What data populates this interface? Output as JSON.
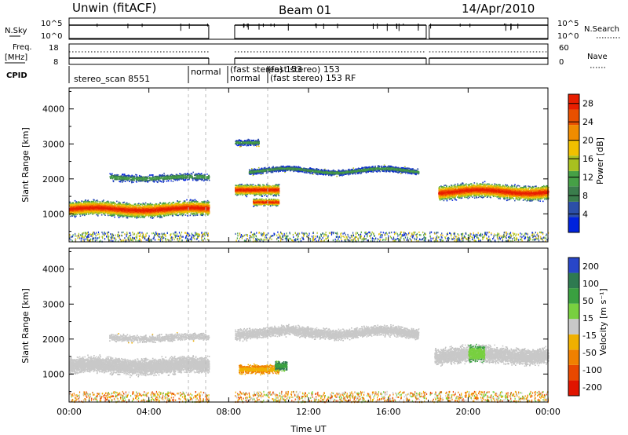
{
  "header": {
    "title_left": "Unwin (fitACF)",
    "title_center": "Beam 01",
    "title_right": "14/Apr/2010"
  },
  "panels": {
    "nsky_label": "N.Sky",
    "nsearch_label": "N.Search",
    "nsky_ticks": [
      "10^5",
      "10^0"
    ],
    "freq_label": "Freq.",
    "freq_unit": "[MHz]",
    "freq_ticks": [
      "18",
      "8"
    ],
    "nave_label": "Nave",
    "nave_ticks": [
      "60",
      "0"
    ],
    "cpid_label": "CPID",
    "cpid_segments": [
      "stereo_scan 8551",
      "normal",
      "(fast stereo) 153",
      "(fast stereo) 153 RF",
      "normal",
      "(fast stereo) 153"
    ]
  },
  "chart_data": [
    {
      "type": "heatmap",
      "title": "",
      "ylabel": "Slant Range [km]",
      "xlabel": "",
      "x_ticks": [
        "00:00",
        "04:00",
        "08:00",
        "12:00",
        "16:00",
        "20:00",
        "00:00"
      ],
      "y_ticks": [
        1000,
        2000,
        3000,
        4000
      ],
      "ylim": [
        200,
        4600
      ],
      "colorbar": {
        "label": "Power [dB]",
        "ticks": [
          4,
          8,
          12,
          16,
          20,
          24,
          28
        ],
        "range": [
          0,
          30
        ]
      },
      "data_gaps_ut": [
        [
          7.0,
          8.3
        ],
        [
          17.9,
          18.05
        ]
      ],
      "colors": [
        "#0022dd",
        "#2c4fa8",
        "#3a7d4c",
        "#46a046",
        "#a8c020",
        "#f0c000",
        "#f08c00",
        "#e85000",
        "#e81e00"
      ]
    },
    {
      "type": "heatmap",
      "title": "",
      "ylabel": "Slant Range [km]",
      "xlabel": "Time UT",
      "x_ticks": [
        "00:00",
        "04:00",
        "08:00",
        "12:00",
        "16:00",
        "20:00",
        "00:00"
      ],
      "y_ticks": [
        1000,
        2000,
        3000,
        4000
      ],
      "ylim": [
        200,
        4600
      ],
      "colorbar": {
        "label": "Velocity [m s⁻¹]",
        "ticks": [
          200,
          100,
          50,
          15,
          -15,
          -50,
          -100,
          -200
        ]
      },
      "colors": [
        "#2846c8",
        "#2e7a50",
        "#3aa040",
        "#78d040",
        "#c8c8c8",
        "#f0b000",
        "#f08000",
        "#e84800",
        "#e01400"
      ]
    }
  ]
}
